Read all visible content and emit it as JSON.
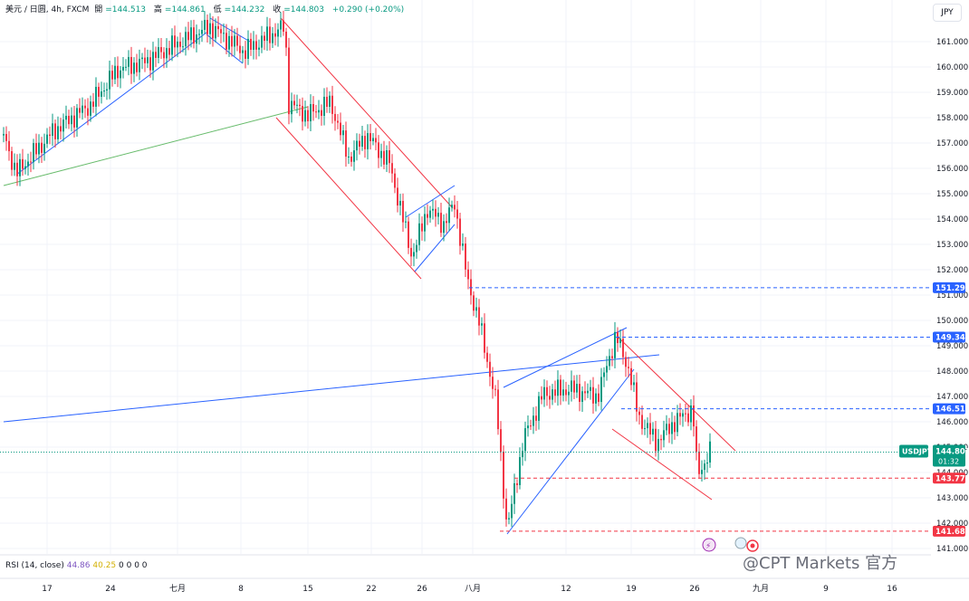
{
  "header": {
    "symbol": "美元 / 日圆, 4h, FXCM",
    "open_label": "開",
    "open": "=144.513",
    "high_label": "高",
    "high": "=144.861",
    "low_label": "低",
    "low": "=144.232",
    "close_label": "收",
    "close": "=144.803",
    "change": "+0.290 (+0.20%)"
  },
  "currency_button": "JPY",
  "price_axis": {
    "ticks": [
      "161.000",
      "160.000",
      "159.000",
      "158.000",
      "157.000",
      "156.000",
      "155.000",
      "154.000",
      "153.000",
      "152.000",
      "151.000",
      "150.000",
      "149.000",
      "148.000",
      "147.000",
      "146.000",
      "145.000",
      "144.000",
      "143.000",
      "142.000",
      "141.000"
    ],
    "labels": [
      {
        "text": "151.290",
        "price": 151.29,
        "color": "#2962ff",
        "style": "dashed"
      },
      {
        "text": "149.340",
        "price": 149.34,
        "color": "#2962ff",
        "style": "dashed"
      },
      {
        "text": "146.515",
        "price": 146.515,
        "color": "#2962ff",
        "style": "dashed"
      },
      {
        "text": "143.775",
        "price": 143.775,
        "color": "#f23645",
        "style": "dashed"
      },
      {
        "text": "141.684",
        "price": 141.684,
        "color": "#f23645",
        "style": "dashed"
      }
    ],
    "current": {
      "symbol": "USDJPY",
      "price": "144.803",
      "countdown": "01:32",
      "color": "#089981"
    }
  },
  "time_axis": {
    "ticks": [
      "17",
      "24",
      "七月",
      "8",
      "15",
      "22",
      "26",
      "八月",
      "12",
      "19",
      "26",
      "九月",
      "9",
      "16"
    ]
  },
  "rsi": {
    "label": "RSI (14, close)",
    "value1": "44.86",
    "value2": "40.25",
    "zeros": "0 0 0 0"
  },
  "watermark": "@CPT Markets 官方",
  "colors": {
    "up": "#089981",
    "down": "#f23645",
    "trend_blue": "#2962ff",
    "trend_red": "#f23645",
    "trend_green": "#089981"
  },
  "chart_data": {
    "type": "candlestick",
    "symbol": "USDJPY",
    "timeframe": "4h",
    "ylim": [
      140.8,
      161.9
    ],
    "grid": true,
    "close_path": [
      {
        "x": "17",
        "close": 157.3
      },
      {
        "x": "24",
        "close": 159.8
      },
      {
        "x": "七月",
        "close": 161.6
      },
      {
        "x": "8",
        "close": 160.9
      },
      {
        "x": "15",
        "close": 158.2
      },
      {
        "x": "22",
        "close": 156.6
      },
      {
        "x": "26",
        "close": 153.9
      },
      {
        "x": "八月",
        "close": 150.5
      },
      {
        "x": "12",
        "close": 147.2
      },
      {
        "x": "19",
        "close": 147.5
      },
      {
        "x": "26",
        "close": 144.0
      }
    ],
    "key_levels": [
      151.29,
      149.34,
      146.515,
      143.775,
      141.684
    ],
    "last": {
      "open": 144.513,
      "high": 144.861,
      "low": 144.232,
      "close": 144.803,
      "change": 0.29,
      "change_pct": 0.2
    }
  }
}
